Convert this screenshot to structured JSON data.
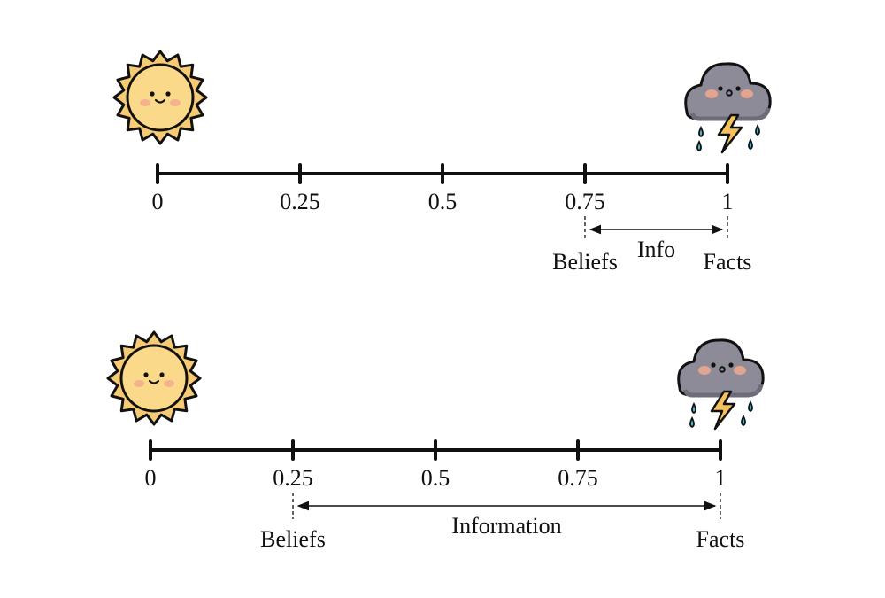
{
  "colors": {
    "line": "#111111",
    "sun_fill": "#F7CB73",
    "sun_inner": "#FBD98A",
    "cloud_fill": "#8E8B99",
    "cloud_dark": "#6F6C79",
    "bolt": "#F5C25B",
    "rain": "#3EC6D6",
    "blush": "#F2A98E"
  },
  "icons": {
    "left": "sun-icon",
    "right": "storm-cloud-icon"
  },
  "rows": [
    {
      "ticks": [
        "0",
        "0.25",
        "0.5",
        "0.75",
        "1"
      ],
      "belief_value": 0.75,
      "fact_value": 1,
      "belief_label": "Beliefs",
      "fact_label": "Facts",
      "span_label": "Info"
    },
    {
      "ticks": [
        "0",
        "0.25",
        "0.5",
        "0.75",
        "1"
      ],
      "belief_value": 0.25,
      "fact_value": 1,
      "belief_label": "Beliefs",
      "fact_label": "Facts",
      "span_label": "Information"
    }
  ]
}
